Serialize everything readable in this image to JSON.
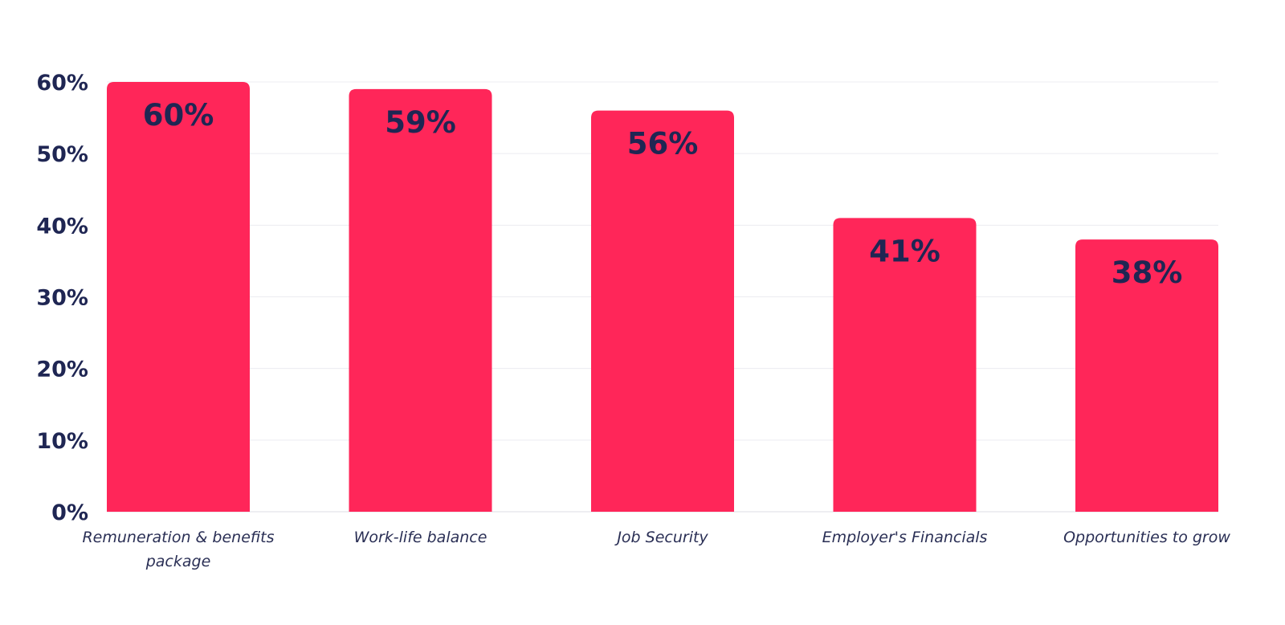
{
  "colors": {
    "bar": "#ff2659",
    "label_text": "#1f2653",
    "axis_text": "#1f2653",
    "category_text": "#2a2f55"
  },
  "chart_data": {
    "type": "bar",
    "title": "",
    "xlabel": "",
    "ylabel": "",
    "categories": [
      [
        "Remuneration & benefits",
        "package"
      ],
      [
        "Work-life balance"
      ],
      [
        "Job Security"
      ],
      [
        "Employer's Financials"
      ],
      [
        "Opportunities to grow"
      ]
    ],
    "values": [
      60,
      59,
      56,
      41,
      38
    ],
    "data_labels": [
      "60%",
      "59%",
      "56%",
      "41%",
      "38%"
    ],
    "ylim": [
      0,
      60
    ],
    "y_ticks": [
      0,
      10,
      20,
      30,
      40,
      50,
      60
    ],
    "y_tick_labels": [
      "0%",
      "10%",
      "20%",
      "30%",
      "40%",
      "50%",
      "60%"
    ],
    "grid": true,
    "legend": "none"
  }
}
